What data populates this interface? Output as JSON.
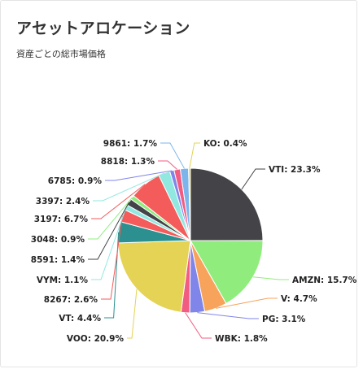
{
  "card": {
    "title": "アセットアロケーション",
    "subtitle": "資産ごとの総市場価格"
  },
  "chart_data": {
    "type": "pie",
    "title": "",
    "label_format": "{name}: {value}%",
    "slices": [
      {
        "name": "VTI",
        "value": 23.3,
        "label": "VTI: 23.3%",
        "color": "#434348"
      },
      {
        "name": "AMZN",
        "value": 15.7,
        "label": "AMZN: 15.7%",
        "color": "#90ed7d"
      },
      {
        "name": "V",
        "value": 4.7,
        "label": "V: 4.7%",
        "color": "#f7a35c"
      },
      {
        "name": "PG",
        "value": 3.1,
        "label": "PG: 3.1%",
        "color": "#8085e9"
      },
      {
        "name": "WBK",
        "value": 1.8,
        "label": "WBK: 1.8%",
        "color": "#f15c80"
      },
      {
        "name": "VOO",
        "value": 20.9,
        "label": "VOO: 20.9%",
        "color": "#e4d354"
      },
      {
        "name": "VT",
        "value": 4.4,
        "label": "VT: 4.4%",
        "color": "#2b908f"
      },
      {
        "name": "8267",
        "value": 2.6,
        "label": "8267: 2.6%",
        "color": "#f45b5b"
      },
      {
        "name": "VYM",
        "value": 1.1,
        "label": "VYM: 1.1%",
        "color": "#91e8e1"
      },
      {
        "name": "8591",
        "value": 1.4,
        "label": "8591: 1.4%",
        "color": "#434348"
      },
      {
        "name": "3048",
        "value": 0.9,
        "label": "3048: 0.9%",
        "color": "#90ed7d"
      },
      {
        "name": "3197",
        "value": 6.7,
        "label": "3197: 6.7%",
        "color": "#f45b5b"
      },
      {
        "name": "3397",
        "value": 2.4,
        "label": "3397: 2.4%",
        "color": "#91e8e1"
      },
      {
        "name": "6785",
        "value": 0.9,
        "label": "6785: 0.9%",
        "color": "#8085e9"
      },
      {
        "name": "8818",
        "value": 1.3,
        "label": "8818: 1.3%",
        "color": "#f15c80"
      },
      {
        "name": "9861",
        "value": 1.7,
        "label": "9861: 1.7%",
        "color": "#7cb5ec"
      },
      {
        "name": "KO",
        "value": 0.4,
        "label": "KO: 0.4%",
        "color": "#e4d354"
      }
    ]
  }
}
